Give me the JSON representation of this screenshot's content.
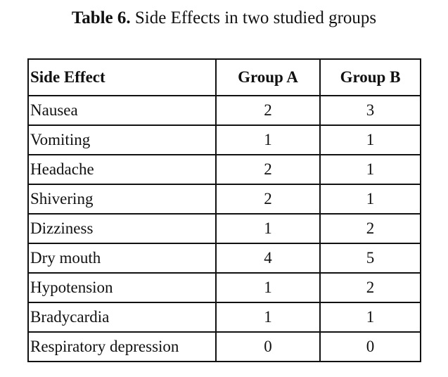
{
  "caption": {
    "label": "Table 6.",
    "text": "Side Effects in two studied groups"
  },
  "table": {
    "headers": [
      "Side Effect",
      "Group A",
      "Group B"
    ],
    "rows": [
      [
        "Nausea",
        "2",
        "3"
      ],
      [
        "Vomiting",
        "1",
        "1"
      ],
      [
        "Headache",
        "2",
        "1"
      ],
      [
        "Shivering",
        "2",
        "1"
      ],
      [
        "Dizziness",
        "1",
        "2"
      ],
      [
        "Dry mouth",
        "4",
        "5"
      ],
      [
        "Hypotension",
        "1",
        "2"
      ],
      [
        "Bradycardia",
        "1",
        "1"
      ],
      [
        "Respiratory depression",
        "0",
        "0"
      ]
    ]
  }
}
